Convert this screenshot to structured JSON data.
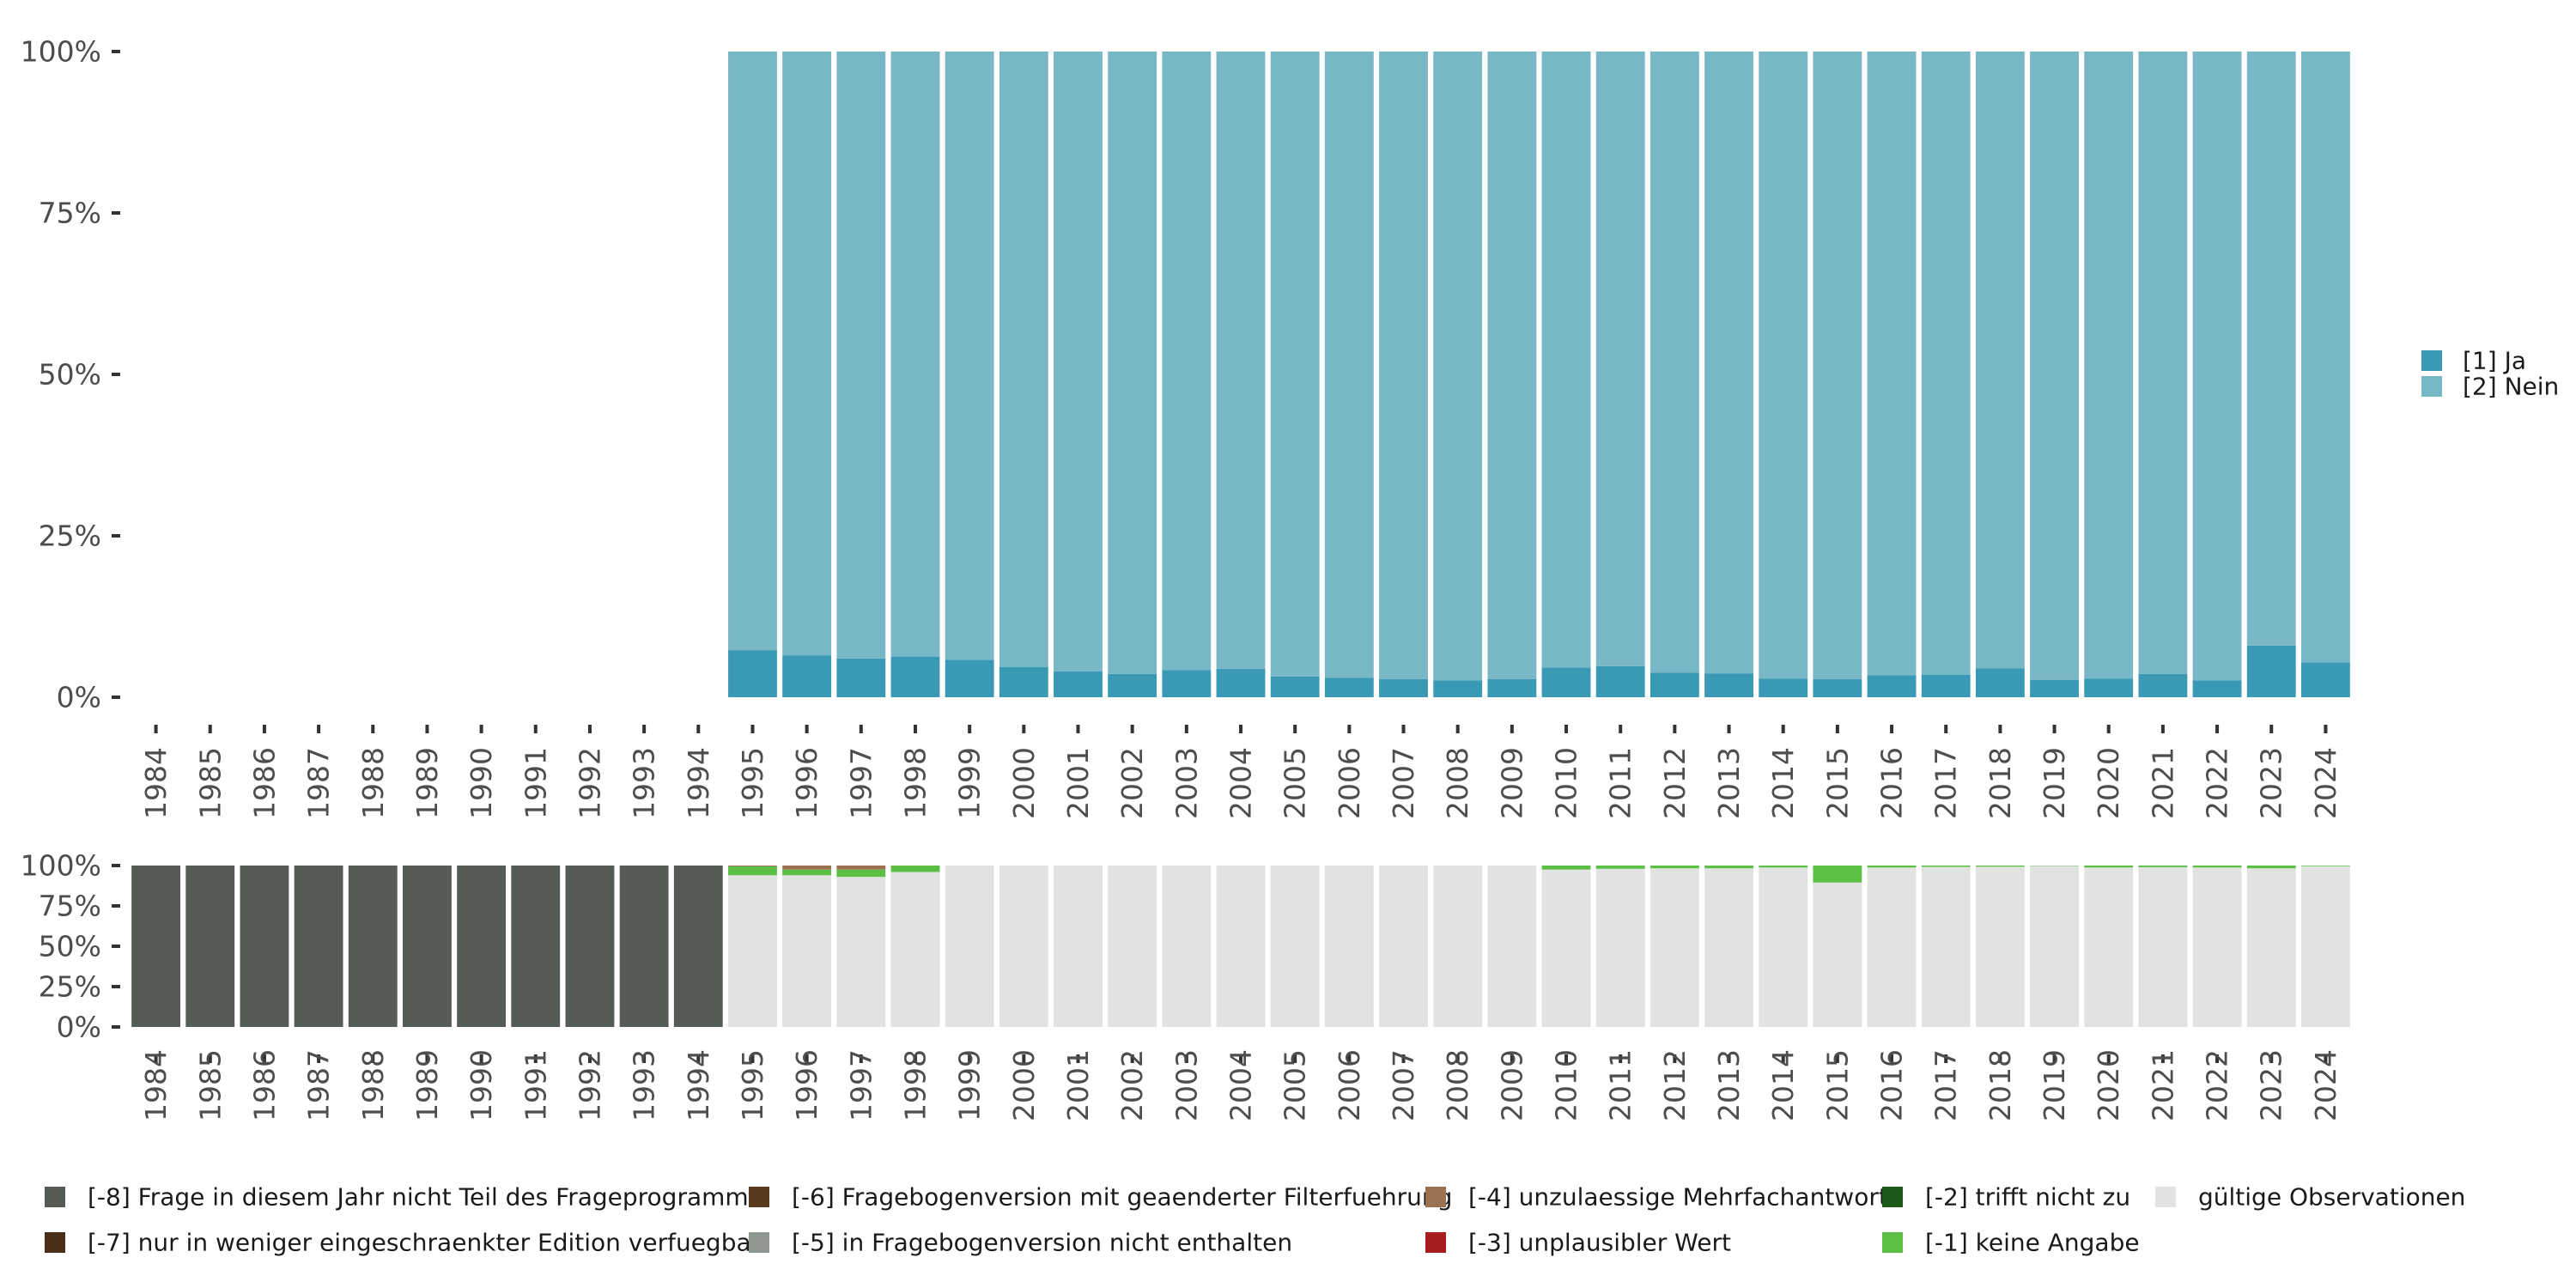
{
  "chart_data": [
    {
      "type": "bar",
      "stacked": true,
      "percent": true,
      "categories": [
        "1984",
        "1985",
        "1986",
        "1987",
        "1988",
        "1989",
        "1990",
        "1991",
        "1992",
        "1993",
        "1994",
        "1995",
        "1996",
        "1997",
        "1998",
        "1999",
        "2000",
        "2001",
        "2002",
        "2003",
        "2004",
        "2005",
        "2006",
        "2007",
        "2008",
        "2009",
        "2010",
        "2011",
        "2012",
        "2013",
        "2014",
        "2015",
        "2016",
        "2017",
        "2018",
        "2019",
        "2020",
        "2021",
        "2022",
        "2023",
        "2024"
      ],
      "y_ticks": [
        "0%",
        "25%",
        "50%",
        "75%",
        "100%"
      ],
      "ylim": [
        0,
        100
      ],
      "legend_position": "right",
      "series": [
        {
          "name": "[1] Ja",
          "color": "#3a9ab5",
          "values": [
            null,
            null,
            null,
            null,
            null,
            null,
            null,
            null,
            null,
            null,
            null,
            7.3,
            6.5,
            6.0,
            6.3,
            5.8,
            4.7,
            4.0,
            3.6,
            4.2,
            4.4,
            3.2,
            3.0,
            2.8,
            2.6,
            2.8,
            4.6,
            4.8,
            3.8,
            3.7,
            2.9,
            2.8,
            3.4,
            3.5,
            4.5,
            2.7,
            2.9,
            3.6,
            2.6,
            8.0,
            5.4
          ]
        },
        {
          "name": "[2] Nein",
          "color": "#78b7c5",
          "values": [
            null,
            null,
            null,
            null,
            null,
            null,
            null,
            null,
            null,
            null,
            null,
            92.7,
            93.5,
            94.0,
            93.7,
            94.2,
            95.3,
            96.0,
            96.4,
            95.8,
            95.6,
            96.8,
            97.0,
            97.2,
            97.4,
            97.2,
            95.4,
            95.2,
            96.2,
            96.3,
            97.1,
            97.2,
            96.6,
            96.5,
            95.5,
            97.3,
            97.1,
            96.4,
            97.4,
            92.0,
            94.6
          ]
        }
      ]
    },
    {
      "type": "bar",
      "stacked": true,
      "percent": true,
      "categories": [
        "1984",
        "1985",
        "1986",
        "1987",
        "1988",
        "1989",
        "1990",
        "1991",
        "1992",
        "1993",
        "1994",
        "1995",
        "1996",
        "1997",
        "1998",
        "1999",
        "2000",
        "2001",
        "2002",
        "2003",
        "2004",
        "2005",
        "2006",
        "2007",
        "2008",
        "2009",
        "2010",
        "2011",
        "2012",
        "2013",
        "2014",
        "2015",
        "2016",
        "2017",
        "2018",
        "2019",
        "2020",
        "2021",
        "2022",
        "2023",
        "2024"
      ],
      "y_ticks": [
        "0%",
        "25%",
        "50%",
        "75%",
        "100%"
      ],
      "ylim": [
        0,
        100
      ],
      "legend_position": "bottom",
      "series": [
        {
          "name": "gültige Observationen",
          "color": "#e0e3df",
          "values": [
            0,
            0,
            0,
            0,
            0,
            0,
            0,
            0,
            0,
            0,
            0,
            94,
            94,
            93,
            96,
            100,
            100,
            100,
            100,
            100,
            100,
            100,
            100,
            100,
            100,
            100,
            97.5,
            98,
            98.3,
            98.3,
            98.8,
            89.5,
            98.8,
            99.2,
            99.3,
            99.8,
            98.8,
            99,
            98.8,
            98.3,
            99.6
          ]
        },
        {
          "name": "[-1] keine Angabe",
          "color": "#5bbf45",
          "values": [
            0,
            0,
            0,
            0,
            0,
            0,
            0,
            0,
            0,
            0,
            0,
            5.5,
            3.5,
            4.5,
            4,
            0,
            0,
            0,
            0,
            0,
            0,
            0,
            0,
            0,
            0,
            0,
            2.5,
            2,
            1.7,
            1.7,
            1.2,
            10.5,
            1.2,
            0.8,
            0.7,
            0.2,
            1.2,
            1,
            1.2,
            1.7,
            0.4
          ]
        },
        {
          "name": "[-2] trifft nicht zu",
          "color": "#1e5a19",
          "values": [
            0,
            0,
            0,
            0,
            0,
            0,
            0,
            0,
            0,
            0,
            0,
            0,
            0,
            0,
            0,
            0,
            0,
            0,
            0,
            0,
            0,
            0,
            0,
            0,
            0,
            0,
            0,
            0,
            0,
            0,
            0,
            0,
            0,
            0,
            0,
            0,
            0,
            0,
            0,
            0,
            0
          ]
        },
        {
          "name": "[-3] unplausibler Wert",
          "color": "#a51d1d",
          "values": [
            0,
            0,
            0,
            0,
            0,
            0,
            0,
            0,
            0,
            0,
            0,
            0,
            0,
            0,
            0,
            0,
            0,
            0,
            0,
            0,
            0,
            0,
            0,
            0,
            0,
            0,
            0,
            0,
            0,
            0,
            0,
            0,
            0,
            0,
            0,
            0,
            0,
            0,
            0,
            0,
            0
          ]
        },
        {
          "name": "[-4] unzulaessige Mehrfachantwort",
          "color": "#9c7150",
          "values": [
            0,
            0,
            0,
            0,
            0,
            0,
            0,
            0,
            0,
            0,
            0,
            0.5,
            2.5,
            2.5,
            0,
            0,
            0,
            0,
            0,
            0,
            0,
            0,
            0,
            0,
            0,
            0,
            0,
            0,
            0,
            0,
            0,
            0,
            0,
            0,
            0,
            0,
            0,
            0,
            0,
            0,
            0
          ]
        },
        {
          "name": "[-5] in Fragebogenversion nicht enthalten",
          "color": "#8f9690",
          "values": [
            0,
            0,
            0,
            0,
            0,
            0,
            0,
            0,
            0,
            0,
            0,
            0,
            0,
            0,
            0,
            0,
            0,
            0,
            0,
            0,
            0,
            0,
            0,
            0,
            0,
            0,
            0,
            0,
            0,
            0,
            0,
            0,
            0,
            0,
            0,
            0,
            0,
            0,
            0,
            0,
            0
          ]
        },
        {
          "name": "[-6] Fragebogenversion mit geaenderter Filterfuehrung",
          "color": "#5a3a1e",
          "values": [
            0,
            0,
            0,
            0,
            0,
            0,
            0,
            0,
            0,
            0,
            0,
            0,
            0,
            0,
            0,
            0,
            0,
            0,
            0,
            0,
            0,
            0,
            0,
            0,
            0,
            0,
            0,
            0,
            0,
            0,
            0,
            0,
            0,
            0,
            0,
            0,
            0,
            0,
            0,
            0,
            0
          ]
        },
        {
          "name": "[-7] nur in weniger eingeschraenkter Edition verfuegbar",
          "color": "#4a3018",
          "values": [
            0,
            0,
            0,
            0,
            0,
            0,
            0,
            0,
            0,
            0,
            0,
            0,
            0,
            0,
            0,
            0,
            0,
            0,
            0,
            0,
            0,
            0,
            0,
            0,
            0,
            0,
            0,
            0,
            0,
            0,
            0,
            0,
            0,
            0,
            0,
            0,
            0,
            0,
            0,
            0,
            0
          ]
        },
        {
          "name": "[-8] Frage in diesem Jahr nicht Teil des Frageprogramms",
          "color": "#555b55",
          "values": [
            100,
            100,
            100,
            100,
            100,
            100,
            100,
            100,
            100,
            100,
            100,
            0,
            0,
            0,
            0,
            0,
            0,
            0,
            0,
            0,
            0,
            0,
            0,
            0,
            0,
            0,
            0,
            0,
            0,
            0,
            0,
            0,
            0,
            0,
            0,
            0,
            0,
            0,
            0,
            0,
            0
          ]
        }
      ],
      "legend_order": [
        "[-8] Frage in diesem Jahr nicht Teil des Frageprogramms",
        "[-7] nur in weniger eingeschraenkter Edition verfuegbar",
        "[-6] Fragebogenversion mit geaenderter Filterfuehrung",
        "[-5] in Fragebogenversion nicht enthalten",
        "[-4] unzulaessige Mehrfachantwort",
        "[-3] unplausibler Wert",
        "[-2] trifft nicht zu",
        "[-1] keine Angabe",
        "gültige Observationen"
      ]
    }
  ]
}
